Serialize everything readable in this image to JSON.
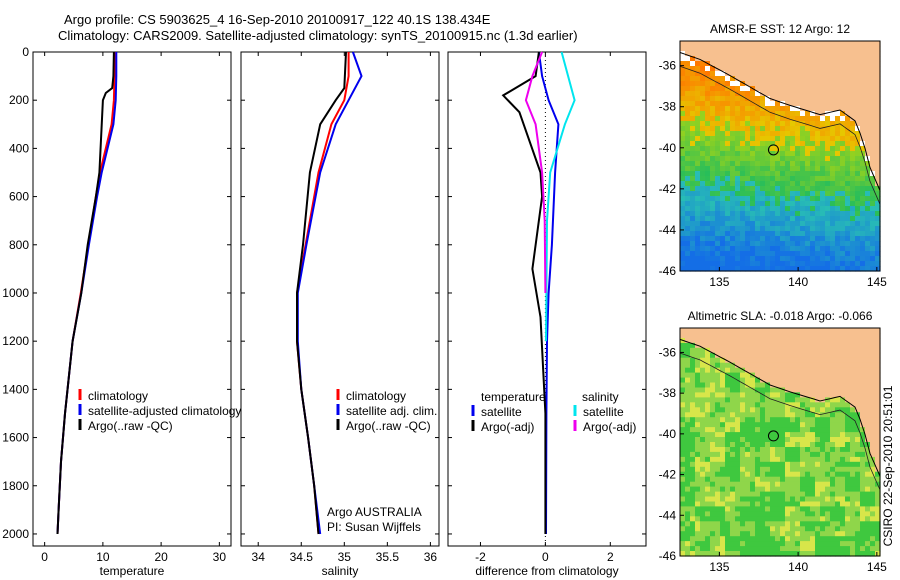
{
  "header": {
    "line1": "Argo profile: CS 5903625_4 16-Sep-2010 20100917_122 40.1S 138.434E",
    "line2": "Climatology: CARS2009. Satellite-adjusted climatology: synTS_20100915.nc (1.3d earlier)"
  },
  "side_label": "CSIRO 22-Sep-2010 20:51:01",
  "colors": {
    "climatology": "#ff0000",
    "satellite": "#0000ee",
    "argo": "#000000",
    "salinity_satellite": "#00e5ee",
    "salinity_argo": "#ee00ee",
    "land": "#f7c08f"
  },
  "chart_data": [
    {
      "id": "temperature-profile",
      "type": "line",
      "xlabel": "temperature",
      "xlim": [
        -2,
        32
      ],
      "ylim": [
        2050,
        0
      ],
      "xticks": [
        0,
        10,
        20,
        30
      ],
      "yticks": [
        0,
        200,
        400,
        600,
        800,
        1000,
        1200,
        1400,
        1600,
        1800,
        2000
      ],
      "legend": {
        "placement": "bottom-right",
        "entries": [
          "climatology",
          "satellite-adjusted climatology",
          "Argo(..raw -QC)"
        ]
      },
      "series": [
        {
          "name": "climatology",
          "color": "#ff0000",
          "x": [
            12.0,
            12.0,
            11.9,
            11.5,
            9.5,
            8.8,
            7.5,
            6.2,
            4.8,
            3.5,
            2.8,
            2.4,
            2.2
          ],
          "y": [
            0,
            100,
            200,
            300,
            500,
            600,
            800,
            1000,
            1200,
            1500,
            1700,
            1900,
            2000
          ]
        },
        {
          "name": "satellite-adjusted climatology",
          "color": "#0000ee",
          "x": [
            12.3,
            12.3,
            12.2,
            11.8,
            9.8,
            9.0,
            7.6,
            6.3,
            4.8,
            3.5,
            2.8,
            2.4,
            2.2
          ],
          "y": [
            0,
            100,
            200,
            300,
            500,
            600,
            800,
            1000,
            1200,
            1500,
            1700,
            1900,
            2000
          ]
        },
        {
          "name": "Argo(..raw -QC)",
          "color": "#000000",
          "x": [
            11.9,
            11.8,
            11.6,
            10.5,
            10.0,
            9.4,
            8.8,
            7.4,
            6.3,
            4.8,
            3.5,
            2.8,
            2.4,
            2.2
          ],
          "y": [
            0,
            100,
            150,
            170,
            200,
            500,
            600,
            800,
            1000,
            1200,
            1500,
            1700,
            1900,
            2000
          ]
        }
      ]
    },
    {
      "id": "salinity-profile",
      "type": "line",
      "xlabel": "salinity",
      "xlim": [
        33.8,
        36.1
      ],
      "ylim": [
        2050,
        0
      ],
      "xticks": [
        34,
        34.5,
        35,
        35.5,
        36
      ],
      "xticklabels": [
        "34",
        "34.5",
        "35",
        "35.5",
        "36"
      ],
      "yticks": [
        0,
        200,
        400,
        600,
        800,
        1000,
        1200,
        1400,
        1600,
        1800,
        2000
      ],
      "legend": {
        "placement": "bottom-right",
        "entries": [
          "climatology",
          "satellite adj. clim.",
          "Argo(..raw -QC)"
        ]
      },
      "annotation": [
        "Argo AUSTRALIA",
        "PI: Susan Wijffels"
      ],
      "series": [
        {
          "name": "climatology",
          "color": "#ff0000",
          "x": [
            35.05,
            35.05,
            35.0,
            34.85,
            34.7,
            34.55,
            34.45,
            34.45,
            34.5,
            34.58,
            34.65,
            34.7
          ],
          "y": [
            0,
            100,
            200,
            300,
            500,
            800,
            1000,
            1200,
            1400,
            1600,
            1800,
            2000
          ]
        },
        {
          "name": "satellite adj. clim.",
          "color": "#0000ee",
          "x": [
            35.1,
            35.2,
            35.05,
            34.9,
            34.72,
            34.56,
            34.46,
            34.46,
            34.5,
            34.58,
            34.65,
            34.72
          ],
          "y": [
            0,
            100,
            200,
            300,
            500,
            800,
            1000,
            1200,
            1400,
            1600,
            1800,
            2000
          ]
        },
        {
          "name": "Argo(..raw -QC)",
          "color": "#000000",
          "x": [
            35.02,
            35.0,
            34.9,
            34.72,
            34.6,
            34.52,
            34.45,
            34.45,
            34.5,
            34.58,
            34.65,
            34.7
          ],
          "y": [
            0,
            150,
            200,
            300,
            500,
            800,
            1000,
            1200,
            1400,
            1600,
            1800,
            2000
          ]
        }
      ]
    },
    {
      "id": "difference-profile",
      "type": "line",
      "xlabel": "difference from climatology",
      "xlim": [
        -3,
        3.1
      ],
      "ylim": [
        2050,
        0
      ],
      "xticks": [
        -2,
        0,
        2
      ],
      "yticks": [
        0,
        200,
        400,
        600,
        800,
        1000,
        1200,
        1400,
        1600,
        1800,
        2000
      ],
      "legend": {
        "placement": "bottom",
        "headers": [
          "temperature",
          "salinity"
        ],
        "entries": [
          "satellite",
          "Argo(-adj)",
          "satellite",
          "Argo(-adj)"
        ]
      },
      "series": [
        {
          "name": "temperature satellite",
          "color": "#0000ee",
          "x": [
            -0.2,
            -0.1,
            0.1,
            0.4,
            0.3,
            0.2,
            0.1,
            0.05,
            0.03,
            0.02
          ],
          "y": [
            0,
            100,
            200,
            300,
            500,
            800,
            1000,
            1200,
            1500,
            2000
          ]
        },
        {
          "name": "temperature Argo(-adj)",
          "color": "#000000",
          "x": [
            -0.2,
            -0.3,
            -1.3,
            -0.8,
            -0.15,
            -0.1,
            -0.4,
            -0.15,
            0.0,
            0.0
          ],
          "y": [
            0,
            100,
            180,
            250,
            500,
            600,
            900,
            1100,
            1500,
            2000
          ]
        },
        {
          "name": "salinity satellite",
          "color": "#00e5ee",
          "x": [
            0.5,
            0.7,
            0.9,
            0.6,
            0.15,
            0.05,
            0.03,
            0.02
          ],
          "y": [
            0,
            100,
            200,
            300,
            500,
            700,
            1000,
            1200
          ]
        },
        {
          "name": "salinity Argo(-adj)",
          "color": "#ee00ee",
          "x": [
            -0.1,
            -0.4,
            -0.6,
            -0.3,
            -0.1,
            -0.02,
            0.0
          ],
          "y": [
            0,
            100,
            200,
            300,
            500,
            700,
            1000
          ]
        }
      ]
    },
    {
      "id": "sst-map",
      "type": "heatmap",
      "title": "AMSR-E SST: 12 Argo: 12",
      "xlim": [
        132.5,
        145.2
      ],
      "ylim": [
        -46,
        -34.8
      ],
      "xticks": [
        135,
        140,
        145
      ],
      "yticks": [
        -36,
        -38,
        -40,
        -42,
        -44,
        -46
      ],
      "marker": {
        "lon": 138.434,
        "lat": -40.1
      }
    },
    {
      "id": "sla-map",
      "type": "heatmap",
      "title": "Altimetric SLA: -0.018 Argo: -0.066",
      "xlim": [
        132.5,
        145.2
      ],
      "ylim": [
        -46,
        -34.8
      ],
      "xticks": [
        135,
        140,
        145
      ],
      "yticks": [
        -36,
        -38,
        -40,
        -42,
        -44,
        -46
      ],
      "marker": {
        "lon": 138.434,
        "lat": -40.1
      }
    }
  ]
}
